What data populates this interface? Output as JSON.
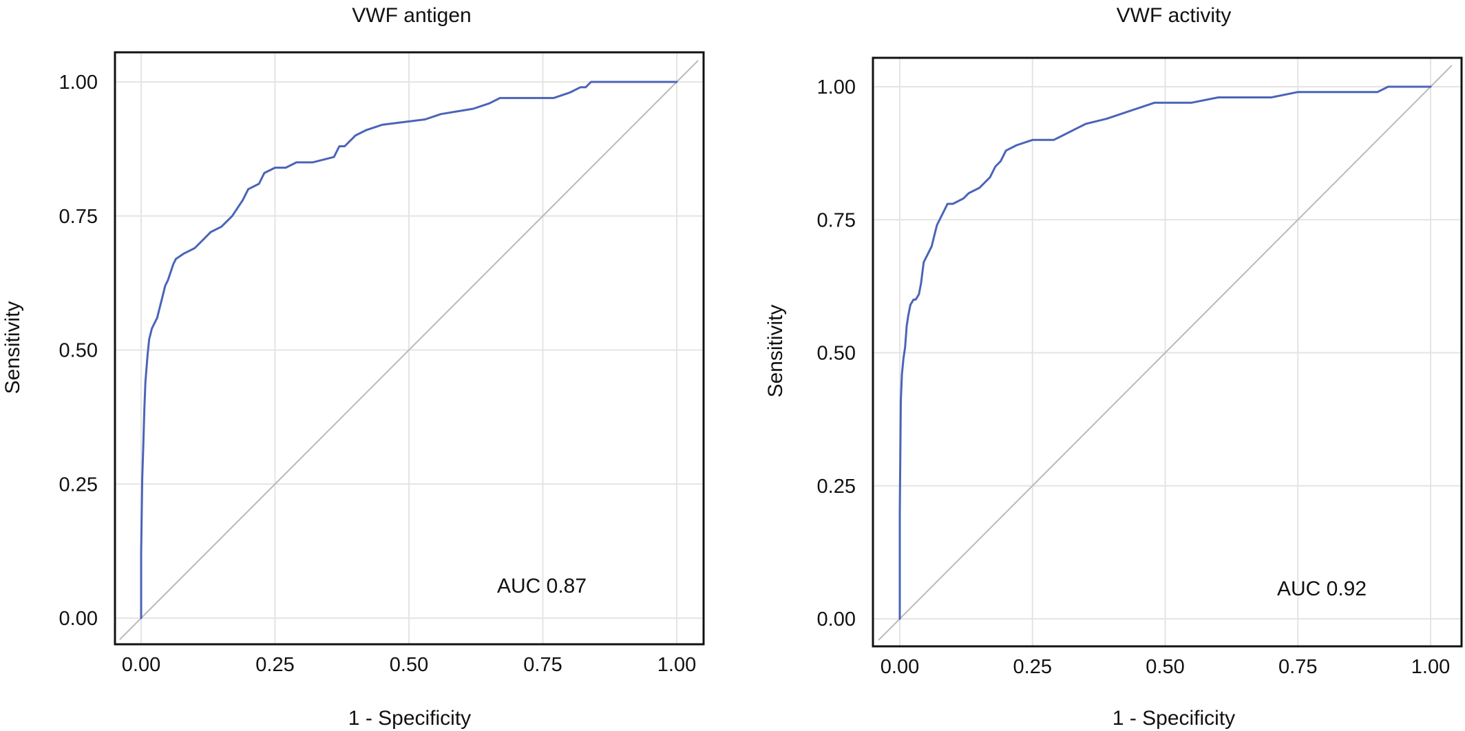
{
  "chart_data": [
    {
      "type": "line",
      "title": "VWF antigen",
      "xlabel": "1 - Specificity",
      "ylabel": "Sensitivity",
      "xlim": [
        -0.04,
        1.04
      ],
      "ylim": [
        -0.05,
        1.05
      ],
      "x_ticks": [
        "0.00",
        "0.25",
        "0.50",
        "0.75",
        "1.00"
      ],
      "y_ticks": [
        "0.00",
        "0.25",
        "0.50",
        "0.75",
        "1.00"
      ],
      "grid": true,
      "annotation": "AUC 0.87",
      "series": [
        {
          "color": "#4a64b8",
          "x": [
            0,
            0,
            0.002,
            0.004,
            0.006,
            0.008,
            0.012,
            0.015,
            0.02,
            0.025,
            0.03,
            0.04,
            0.045,
            0.05,
            0.06,
            0.065,
            0.08,
            0.1,
            0.12,
            0.13,
            0.15,
            0.17,
            0.19,
            0.2,
            0.22,
            0.23,
            0.25,
            0.27,
            0.29,
            0.3,
            0.32,
            0.36,
            0.37,
            0.38,
            0.4,
            0.42,
            0.45,
            0.53,
            0.56,
            0.62,
            0.65,
            0.67,
            0.72,
            0.77,
            0.8,
            0.82,
            0.83,
            0.84,
            1.0
          ],
          "y": [
            0,
            0.12,
            0.26,
            0.32,
            0.39,
            0.44,
            0.49,
            0.52,
            0.54,
            0.55,
            0.56,
            0.6,
            0.62,
            0.63,
            0.66,
            0.67,
            0.68,
            0.69,
            0.71,
            0.72,
            0.73,
            0.75,
            0.78,
            0.8,
            0.81,
            0.83,
            0.84,
            0.84,
            0.85,
            0.85,
            0.85,
            0.86,
            0.88,
            0.88,
            0.9,
            0.91,
            0.92,
            0.93,
            0.94,
            0.95,
            0.96,
            0.97,
            0.97,
            0.97,
            0.98,
            0.99,
            0.99,
            1.0,
            1.0
          ]
        }
      ],
      "reference_line": {
        "x": [
          0,
          1
        ],
        "y": [
          0,
          1
        ],
        "color": "#b9b9b9"
      }
    },
    {
      "type": "line",
      "title": "VWF activity",
      "xlabel": "1 - Specificity",
      "ylabel": "Sensitivity",
      "xlim": [
        -0.04,
        1.04
      ],
      "ylim": [
        -0.05,
        1.05
      ],
      "x_ticks": [
        "0.00",
        "0.25",
        "0.50",
        "0.75",
        "1.00"
      ],
      "y_ticks": [
        "0.00",
        "0.25",
        "0.50",
        "0.75",
        "1.00"
      ],
      "grid": true,
      "annotation": "AUC 0.92",
      "series": [
        {
          "color": "#4a64b8",
          "x": [
            0,
            0,
            0.002,
            0.004,
            0.007,
            0.01,
            0.013,
            0.016,
            0.02,
            0.026,
            0.03,
            0.036,
            0.04,
            0.045,
            0.05,
            0.06,
            0.065,
            0.07,
            0.08,
            0.09,
            0.1,
            0.12,
            0.13,
            0.15,
            0.17,
            0.18,
            0.19,
            0.2,
            0.22,
            0.25,
            0.29,
            0.31,
            0.33,
            0.35,
            0.39,
            0.42,
            0.45,
            0.48,
            0.5,
            0.55,
            0.6,
            0.68,
            0.7,
            0.75,
            0.78,
            0.8,
            0.9,
            0.92,
            1.0
          ],
          "y": [
            0,
            0.2,
            0.41,
            0.46,
            0.49,
            0.51,
            0.55,
            0.57,
            0.59,
            0.6,
            0.6,
            0.61,
            0.63,
            0.67,
            0.68,
            0.7,
            0.72,
            0.74,
            0.76,
            0.78,
            0.78,
            0.79,
            0.8,
            0.81,
            0.83,
            0.85,
            0.86,
            0.88,
            0.89,
            0.9,
            0.9,
            0.91,
            0.92,
            0.93,
            0.94,
            0.95,
            0.96,
            0.97,
            0.97,
            0.97,
            0.98,
            0.98,
            0.98,
            0.99,
            0.99,
            0.99,
            0.99,
            1.0,
            1.0
          ]
        }
      ],
      "reference_line": {
        "x": [
          0,
          1
        ],
        "y": [
          0,
          1
        ],
        "color": "#b9b9b9"
      }
    }
  ]
}
